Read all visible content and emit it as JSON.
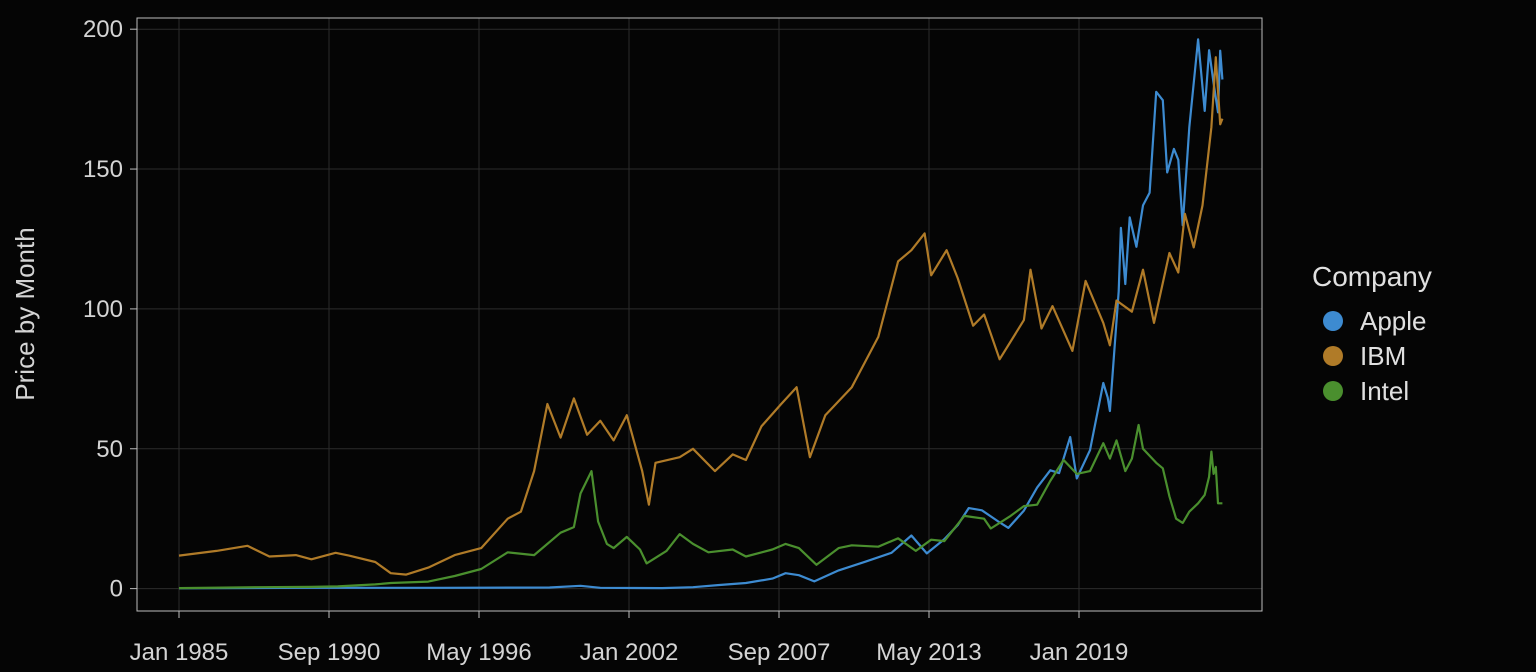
{
  "chart_data": {
    "type": "line",
    "title": "",
    "xlabel": "",
    "ylabel": "Price by Month",
    "x_ticks": [
      "Jan 1985",
      "Sep 1990",
      "May 1996",
      "Jan 2002",
      "Sep 2007",
      "May 2013",
      "Jan 2019"
    ],
    "y_ticks": [
      0,
      50,
      100,
      150,
      200
    ],
    "xlim": [
      "1985-01",
      "2024-06"
    ],
    "ylim": [
      -8,
      204
    ],
    "grid": true,
    "legend": {
      "title": "Company",
      "placement": "right"
    },
    "series": [
      {
        "name": "Apple",
        "color": "#3d8bd1",
        "points": [
          [
            "1985-01",
            0.1
          ],
          [
            "1990-01",
            0.3
          ],
          [
            "1995-01",
            0.3
          ],
          [
            "1999-01",
            0.4
          ],
          [
            "2000-03",
            1.0
          ],
          [
            "2000-12",
            0.3
          ],
          [
            "2003-04",
            0.2
          ],
          [
            "2004-06",
            0.5
          ],
          [
            "2005-06",
            1.3
          ],
          [
            "2006-06",
            2.0
          ],
          [
            "2007-06",
            3.6
          ],
          [
            "2007-12",
            5.5
          ],
          [
            "2008-06",
            4.8
          ],
          [
            "2009-01",
            2.6
          ],
          [
            "2009-12",
            6.5
          ],
          [
            "2010-12",
            9.6
          ],
          [
            "2011-12",
            12.8
          ],
          [
            "2012-09",
            19.0
          ],
          [
            "2013-04",
            12.6
          ],
          [
            "2013-12",
            17.7
          ],
          [
            "2014-06",
            22.7
          ],
          [
            "2014-11",
            28.8
          ],
          [
            "2015-05",
            28.0
          ],
          [
            "2015-12",
            24.2
          ],
          [
            "2016-05",
            21.7
          ],
          [
            "2016-12",
            27.9
          ],
          [
            "2017-06",
            36.1
          ],
          [
            "2017-12",
            42.3
          ],
          [
            "2018-04",
            41.3
          ],
          [
            "2018-09",
            54.2
          ],
          [
            "2018-12",
            39.4
          ],
          [
            "2019-06",
            49.5
          ],
          [
            "2019-12",
            73.5
          ],
          [
            "2020-02",
            68.3
          ],
          [
            "2020-03",
            63.5
          ],
          [
            "2020-07",
            106.3
          ],
          [
            "2020-08",
            129.0
          ],
          [
            "2020-10",
            108.9
          ],
          [
            "2020-12",
            132.7
          ],
          [
            "2021-03",
            122.2
          ],
          [
            "2021-06",
            137.0
          ],
          [
            "2021-09",
            141.5
          ],
          [
            "2021-12",
            177.6
          ],
          [
            "2022-03",
            174.6
          ],
          [
            "2022-05",
            148.8
          ],
          [
            "2022-08",
            157.2
          ],
          [
            "2022-10",
            153.3
          ],
          [
            "2022-12",
            129.9
          ],
          [
            "2023-03",
            164.9
          ],
          [
            "2023-07",
            196.4
          ],
          [
            "2023-10",
            170.8
          ],
          [
            "2023-12",
            192.5
          ],
          [
            "2024-02",
            180.7
          ],
          [
            "2024-04",
            170.3
          ],
          [
            "2024-05",
            192.3
          ],
          [
            "2024-06",
            182.0
          ]
        ]
      },
      {
        "name": "IBM",
        "color": "#b07b28",
        "points": [
          [
            "1985-01",
            11.8
          ],
          [
            "1986-06",
            13.5
          ],
          [
            "1987-08",
            15.3
          ],
          [
            "1988-06",
            11.5
          ],
          [
            "1989-06",
            12.0
          ],
          [
            "1990-01",
            10.5
          ],
          [
            "1990-12",
            12.8
          ],
          [
            "1991-06",
            11.8
          ],
          [
            "1992-06",
            9.5
          ],
          [
            "1993-01",
            5.5
          ],
          [
            "1993-08",
            5.0
          ],
          [
            "1994-06",
            7.5
          ],
          [
            "1995-06",
            12.0
          ],
          [
            "1996-06",
            14.5
          ],
          [
            "1997-06",
            25.0
          ],
          [
            "1997-12",
            27.5
          ],
          [
            "1998-06",
            42.0
          ],
          [
            "1998-12",
            66.0
          ],
          [
            "1999-06",
            54.0
          ],
          [
            "1999-12",
            68.0
          ],
          [
            "2000-06",
            55.0
          ],
          [
            "2000-12",
            60.0
          ],
          [
            "2001-06",
            53.0
          ],
          [
            "2001-12",
            62.0
          ],
          [
            "2002-07",
            42.0
          ],
          [
            "2002-10",
            30.0
          ],
          [
            "2003-01",
            45.0
          ],
          [
            "2003-12",
            47.0
          ],
          [
            "2004-06",
            50.0
          ],
          [
            "2005-04",
            42.0
          ],
          [
            "2005-12",
            48.0
          ],
          [
            "2006-06",
            46.0
          ],
          [
            "2007-01",
            58.0
          ],
          [
            "2007-10",
            66.0
          ],
          [
            "2008-05",
            72.0
          ],
          [
            "2008-11",
            47.0
          ],
          [
            "2009-06",
            62.0
          ],
          [
            "2010-06",
            72.0
          ],
          [
            "2011-06",
            90.0
          ],
          [
            "2012-03",
            117.0
          ],
          [
            "2012-09",
            121.0
          ],
          [
            "2013-03",
            127.0
          ],
          [
            "2013-06",
            112.0
          ],
          [
            "2014-01",
            121.0
          ],
          [
            "2014-06",
            111.0
          ],
          [
            "2015-01",
            94.0
          ],
          [
            "2015-06",
            98.0
          ],
          [
            "2016-01",
            82.0
          ],
          [
            "2016-12",
            96.0
          ],
          [
            "2017-03",
            114.0
          ],
          [
            "2017-08",
            93.0
          ],
          [
            "2018-01",
            101.0
          ],
          [
            "2018-10",
            85.0
          ],
          [
            "2019-04",
            110.0
          ],
          [
            "2019-12",
            95.0
          ],
          [
            "2020-03",
            87.0
          ],
          [
            "2020-06",
            103.0
          ],
          [
            "2021-01",
            99.0
          ],
          [
            "2021-06",
            114.0
          ],
          [
            "2021-11",
            95.0
          ],
          [
            "2022-06",
            120.0
          ],
          [
            "2022-10",
            113.0
          ],
          [
            "2023-01",
            134.0
          ],
          [
            "2023-05",
            122.0
          ],
          [
            "2023-09",
            137.0
          ],
          [
            "2024-01",
            165.0
          ],
          [
            "2024-03",
            190.0
          ],
          [
            "2024-05",
            166.0
          ],
          [
            "2024-06",
            168.0
          ]
        ]
      },
      {
        "name": "Intel",
        "color": "#4a8f2e",
        "points": [
          [
            "1985-01",
            0.2
          ],
          [
            "1988-01",
            0.5
          ],
          [
            "1990-01",
            0.6
          ],
          [
            "1991-01",
            0.8
          ],
          [
            "1992-06",
            1.5
          ],
          [
            "1993-01",
            2.0
          ],
          [
            "1994-06",
            2.5
          ],
          [
            "1995-06",
            4.5
          ],
          [
            "1996-06",
            7.0
          ],
          [
            "1997-06",
            13.0
          ],
          [
            "1998-06",
            12.0
          ],
          [
            "1999-06",
            20.0
          ],
          [
            "1999-12",
            22.0
          ],
          [
            "2000-03",
            34.0
          ],
          [
            "2000-08",
            42.0
          ],
          [
            "2000-11",
            24.0
          ],
          [
            "2001-03",
            16.0
          ],
          [
            "2001-06",
            14.5
          ],
          [
            "2001-12",
            18.5
          ],
          [
            "2002-06",
            14.0
          ],
          [
            "2002-09",
            9.0
          ],
          [
            "2003-06",
            13.5
          ],
          [
            "2003-12",
            19.5
          ],
          [
            "2004-06",
            16.0
          ],
          [
            "2005-01",
            13.0
          ],
          [
            "2005-12",
            14.0
          ],
          [
            "2006-06",
            11.5
          ],
          [
            "2007-06",
            14.0
          ],
          [
            "2007-12",
            16.0
          ],
          [
            "2008-06",
            14.5
          ],
          [
            "2009-02",
            8.5
          ],
          [
            "2009-12",
            14.5
          ],
          [
            "2010-06",
            15.5
          ],
          [
            "2011-06",
            15.0
          ],
          [
            "2012-03",
            18.0
          ],
          [
            "2012-11",
            13.5
          ],
          [
            "2013-06",
            17.5
          ],
          [
            "2013-12",
            17.0
          ],
          [
            "2014-09",
            26.0
          ],
          [
            "2015-06",
            25.0
          ],
          [
            "2015-09",
            21.5
          ],
          [
            "2016-06",
            26.0
          ],
          [
            "2016-12",
            29.5
          ],
          [
            "2017-06",
            30.0
          ],
          [
            "2017-12",
            38.5
          ],
          [
            "2018-06",
            46.0
          ],
          [
            "2018-12",
            41.0
          ],
          [
            "2019-06",
            42.0
          ],
          [
            "2019-12",
            52.0
          ],
          [
            "2020-03",
            46.5
          ],
          [
            "2020-06",
            53.0
          ],
          [
            "2020-10",
            42.0
          ],
          [
            "2021-01",
            46.5
          ],
          [
            "2021-04",
            58.5
          ],
          [
            "2021-06",
            50.0
          ],
          [
            "2021-12",
            45.0
          ],
          [
            "2022-03",
            43.0
          ],
          [
            "2022-06",
            33.0
          ],
          [
            "2022-09",
            25.0
          ],
          [
            "2022-12",
            23.5
          ],
          [
            "2023-03",
            27.5
          ],
          [
            "2023-07",
            30.5
          ],
          [
            "2023-10",
            33.5
          ],
          [
            "2023-12",
            40.0
          ],
          [
            "2024-01",
            49.0
          ],
          [
            "2024-02",
            41.0
          ],
          [
            "2024-03",
            43.5
          ],
          [
            "2024-04",
            30.5
          ],
          [
            "2024-06",
            30.5
          ]
        ]
      }
    ]
  }
}
